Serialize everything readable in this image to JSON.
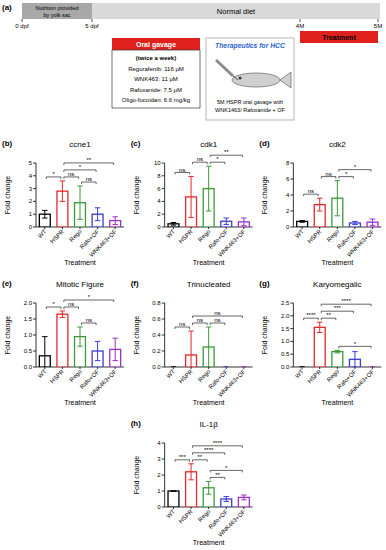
{
  "diagram": {
    "panel": "(a)",
    "yolk": [
      "Nutrition provided",
      "by yolk sac"
    ],
    "diet": "Normal diet",
    "times": [
      "0 dpf",
      "5 dpf",
      "4M",
      "5M"
    ],
    "treatment": "Treatment",
    "gavage_title": "Oral gavage",
    "gavage_lines": [
      "(twice a week)",
      "Regorafenib: 116 μM",
      "WNK463: 11 μM",
      "Rafoxanide: 7.5 μM",
      "Oligo-fucoidan: 6.6 mg/kg"
    ],
    "therapy_title": "Therapeutics for HCC",
    "therapy_caption": [
      "5M HSPR oral gavage with",
      "WNK1463/ Rafoxanide + OF"
    ]
  },
  "chart_data": [
    {
      "type": "bar",
      "panel": "(b)",
      "title": "ccne1",
      "y_label": "Fold change",
      "x_label": "Treatment",
      "categories": [
        "WT",
        "HSPR",
        "Rego",
        "Rafo+OF",
        "WNK463+OF"
      ],
      "values": [
        1.0,
        2.8,
        1.9,
        1.0,
        0.5
      ],
      "errors": [
        0.3,
        0.8,
        1.3,
        0.5,
        0.3
      ],
      "colors": [
        "#000000",
        "#e8262a",
        "#3a9a3a",
        "#3b3bd9",
        "#9b30c8"
      ],
      "ylim": [
        0,
        5
      ],
      "yticks": [
        0,
        1,
        2,
        3,
        4,
        5
      ],
      "annotations": [
        {
          "between": [
            "WT",
            "HSPR"
          ],
          "label": "*"
        },
        {
          "between": [
            "HSPR",
            "Rego"
          ],
          "label": "ns"
        },
        {
          "between": [
            "Rego",
            "Rafo+OF"
          ],
          "label": "ns"
        },
        {
          "between": [
            "HSPR",
            "Rafo+OF"
          ],
          "label": "*"
        },
        {
          "between": [
            "HSPR",
            "WNK463+OF"
          ],
          "label": "**"
        }
      ]
    },
    {
      "type": "bar",
      "panel": "(c)",
      "title": "cdk1",
      "y_label": "Fold change",
      "x_label": "Treatment",
      "categories": [
        "WT",
        "HSPR",
        "Rego",
        "Rafo+OF",
        "WNK463+OF"
      ],
      "values": [
        0.5,
        4.7,
        6.0,
        0.9,
        0.8
      ],
      "errors": [
        0.2,
        3.2,
        3.5,
        0.5,
        0.6
      ],
      "colors": [
        "#000000",
        "#e8262a",
        "#3a9a3a",
        "#3b3bd9",
        "#9b30c8"
      ],
      "ylim": [
        0,
        10
      ],
      "yticks": [
        0,
        2,
        4,
        6,
        8,
        10
      ],
      "annotations": [
        {
          "between": [
            "WT",
            "HSPR"
          ],
          "label": "ns"
        },
        {
          "between": [
            "HSPR",
            "Rego"
          ],
          "label": "ns"
        },
        {
          "between": [
            "Rego",
            "Rafo+OF"
          ],
          "label": "*"
        },
        {
          "between": [
            "Rego",
            "WNK463+OF"
          ],
          "label": "**"
        }
      ]
    },
    {
      "type": "bar",
      "panel": "(d)",
      "title": "cdk2",
      "y_label": "Fold change",
      "x_label": "Treatment",
      "categories": [
        "WT",
        "HSPR",
        "Rego",
        "Rafo+OF",
        "WNK463+OF"
      ],
      "values": [
        0.7,
        2.8,
        3.6,
        0.5,
        0.6
      ],
      "errors": [
        0.1,
        0.8,
        2.2,
        0.2,
        0.4
      ],
      "colors": [
        "#000000",
        "#e8262a",
        "#3a9a3a",
        "#3b3bd9",
        "#9b30c8"
      ],
      "ylim": [
        0,
        8
      ],
      "yticks": [
        0,
        2,
        4,
        6,
        8
      ],
      "annotations": [
        {
          "between": [
            "WT",
            "HSPR"
          ],
          "label": "ns"
        },
        {
          "between": [
            "HSPR",
            "Rego"
          ],
          "label": "ns"
        },
        {
          "between": [
            "Rego",
            "Rafo+OF"
          ],
          "label": "*"
        },
        {
          "between": [
            "Rego",
            "WNK463+OF"
          ],
          "label": "*"
        }
      ]
    },
    {
      "type": "bar",
      "panel": "(e)",
      "title": "Mitotic Figure",
      "y_label": "Fold change",
      "x_label": "Treatment",
      "categories": [
        "WT",
        "HSPR",
        "Rego",
        "Rafo+OF",
        "WNK463+OF"
      ],
      "values": [
        0.35,
        1.65,
        0.95,
        0.5,
        0.55
      ],
      "errors": [
        0.6,
        0.1,
        0.3,
        0.3,
        0.35
      ],
      "colors": [
        "#000000",
        "#e8262a",
        "#3a9a3a",
        "#3b3bd9",
        "#9b30c8"
      ],
      "ylim": [
        0,
        2
      ],
      "yticks": [
        {
          "value": 0,
          "label": "0.0"
        },
        0.5,
        {
          "value": 1,
          "label": "1.0"
        },
        1.5,
        {
          "value": 2,
          "label": "2.0"
        }
      ],
      "annotations": [
        {
          "between": [
            "WT",
            "HSPR"
          ],
          "label": "*"
        },
        {
          "between": [
            "HSPR",
            "Rego"
          ],
          "label": "ns"
        },
        {
          "between": [
            "Rego",
            "Rafo+OF"
          ],
          "label": "ns"
        },
        {
          "between": [
            "HSPR",
            "WNK463+OF"
          ],
          "label": "*"
        }
      ]
    },
    {
      "type": "bar",
      "panel": "(f)",
      "title": "Trinucleated",
      "y_label": "Fold change",
      "x_label": "Treatment",
      "categories": [
        "WT",
        "HSPR",
        "Rego",
        "Rafo+OF",
        "WNK463+OF"
      ],
      "values": [
        0,
        0.15,
        0.25,
        0,
        0
      ],
      "errors": [
        0,
        0.3,
        0.25,
        0,
        0
      ],
      "colors": [
        "#000000",
        "#e8262a",
        "#3a9a3a",
        "#3b3bd9",
        "#9b30c8"
      ],
      "ylim": [
        0,
        0.8
      ],
      "yticks": [
        {
          "value": 0,
          "label": "0.0"
        },
        0.2,
        0.4,
        0.6,
        0.8
      ],
      "annotations": [
        {
          "between": [
            "WT",
            "HSPR"
          ],
          "label": "ns"
        },
        {
          "between": [
            "HSPR",
            "Rego"
          ],
          "label": "ns"
        },
        {
          "between": [
            "Rego",
            "Rafo+OF"
          ],
          "label": "ns"
        },
        {
          "between": [
            "HSPR",
            "WNK463+OF"
          ],
          "label": "ns"
        }
      ]
    },
    {
      "type": "bar",
      "panel": "(g)",
      "title": "Karyomegalic",
      "y_label": "Fold change",
      "x_label": "Treatment",
      "categories": [
        "WT",
        "HSPR",
        "Rego",
        "Rafo+OF",
        "WNK463+OF"
      ],
      "values": [
        0,
        1.55,
        0.6,
        0.3,
        0
      ],
      "errors": [
        0,
        0.2,
        0.05,
        0.3,
        0
      ],
      "colors": [
        "#000000",
        "#e8262a",
        "#3a9a3a",
        "#3b3bd9",
        "#9b30c8"
      ],
      "ylim": [
        0,
        2.5
      ],
      "yticks": [
        {
          "value": 0,
          "label": "0.0"
        },
        0.5,
        {
          "value": 1,
          "label": "1.0"
        },
        1.5,
        {
          "value": 2,
          "label": "2.0"
        },
        2.5
      ],
      "annotations": [
        {
          "between": [
            "WT",
            "HSPR"
          ],
          "label": "****"
        },
        {
          "between": [
            "HSPR",
            "Rego"
          ],
          "label": "**"
        },
        {
          "between": [
            "Rego",
            "WNK463+OF"
          ],
          "label": "*"
        },
        {
          "between": [
            "HSPR",
            "Rafo+OF"
          ],
          "label": "***"
        },
        {
          "between": [
            "HSPR",
            "WNK463+OF"
          ],
          "label": "****"
        }
      ]
    },
    {
      "type": "bar",
      "panel": "(h)",
      "title": "IL-1β",
      "y_label": "Fold change",
      "x_label": "Treatment",
      "categories": [
        "WT",
        "HSPR",
        "Rego",
        "Rafo+OF",
        "WNK463+OF"
      ],
      "values": [
        1.0,
        2.2,
        1.2,
        0.5,
        0.6
      ],
      "errors": [
        0,
        0.5,
        0.4,
        0.15,
        0.15
      ],
      "colors": [
        "#000000",
        "#e8262a",
        "#3a9a3a",
        "#3b3bd9",
        "#9b30c8"
      ],
      "ylim": [
        0,
        4
      ],
      "yticks": [
        0,
        1,
        2,
        3,
        4
      ],
      "annotations": [
        {
          "between": [
            "WT",
            "HSPR"
          ],
          "label": "***"
        },
        {
          "between": [
            "HSPR",
            "Rego"
          ],
          "label": "**"
        },
        {
          "between": [
            "Rego",
            "Rafo+OF"
          ],
          "label": "**"
        },
        {
          "between": [
            "Rego",
            "WNK463+OF"
          ],
          "label": "*"
        },
        {
          "between": [
            "HSPR",
            "Rafo+OF"
          ],
          "label": "****"
        },
        {
          "between": [
            "HSPR",
            "WNK463+OF"
          ],
          "label": "****"
        }
      ]
    }
  ]
}
